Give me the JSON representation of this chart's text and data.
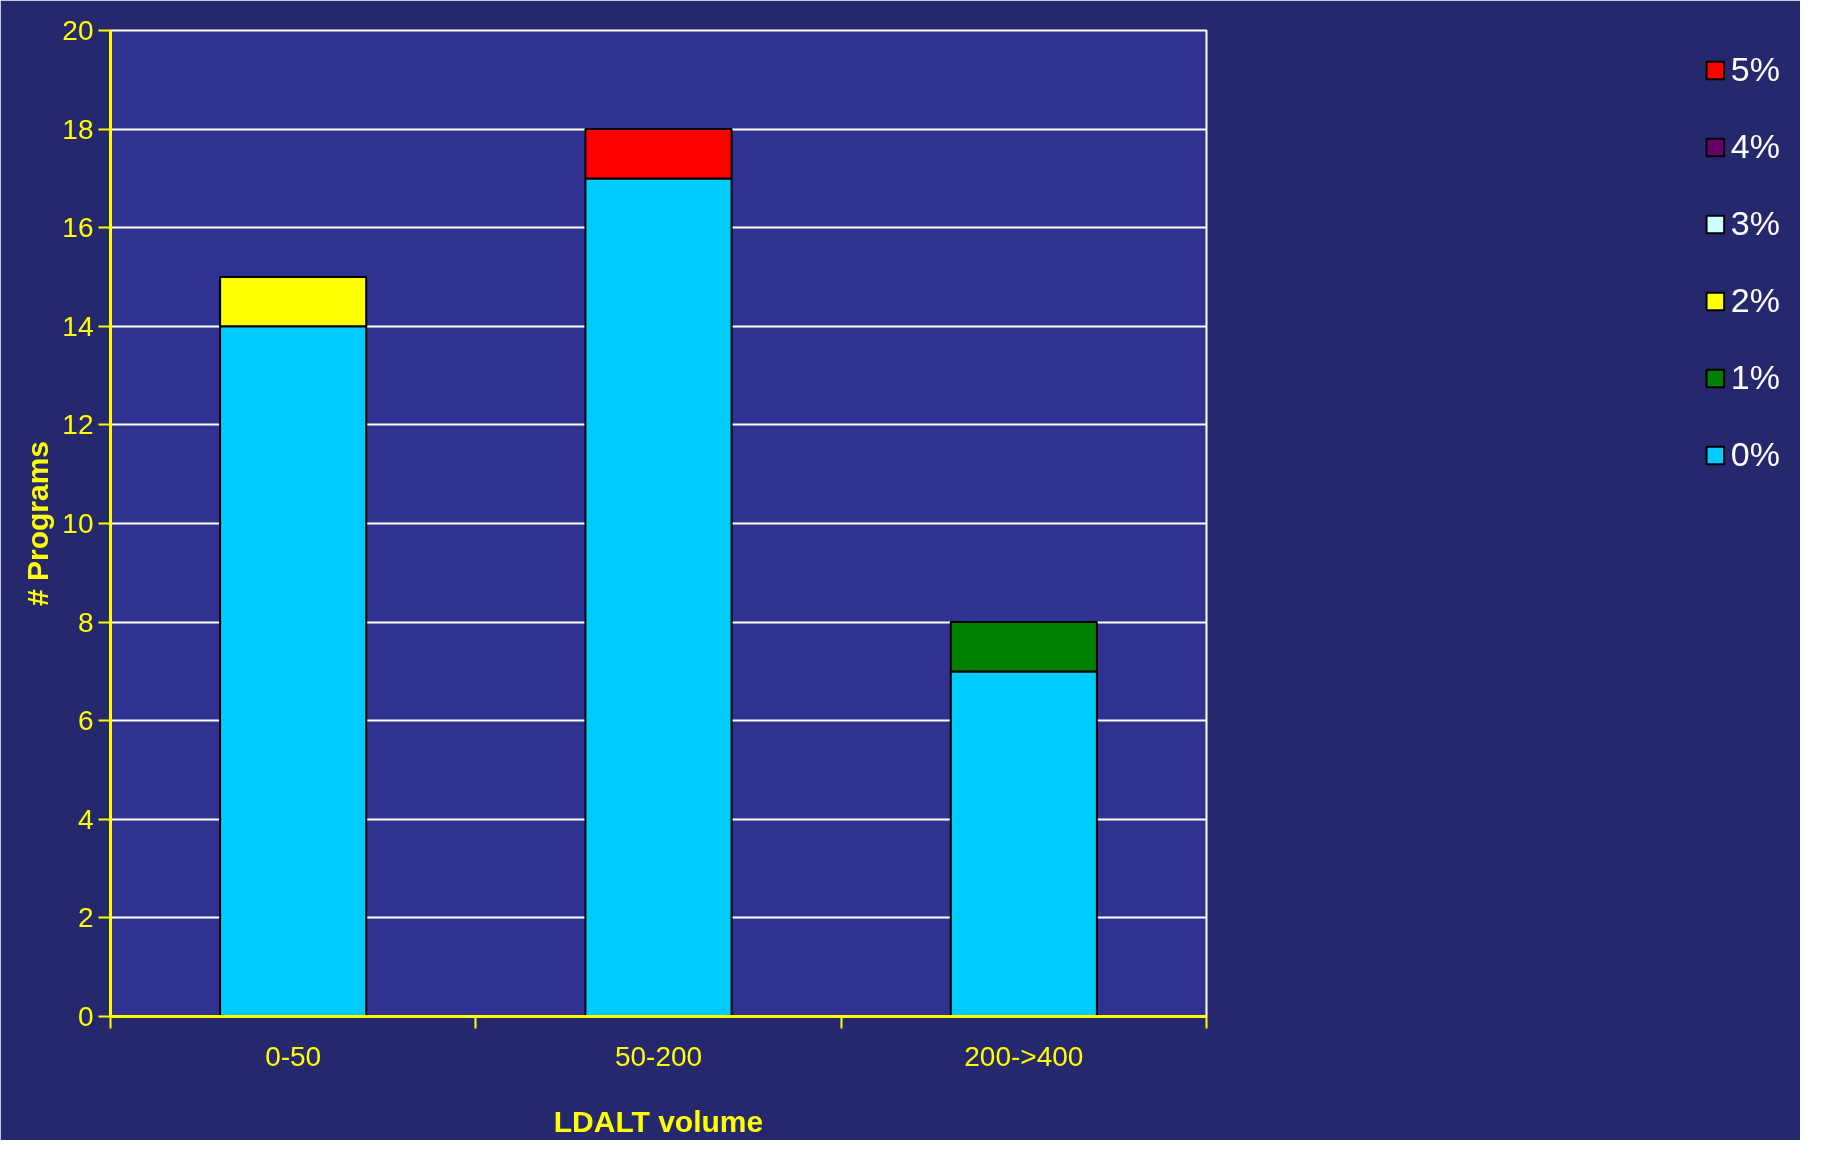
{
  "chart_data": {
    "type": "bar",
    "stacked": true,
    "xlabel": "LDALT volume",
    "ylabel": "# Programs",
    "categories": [
      "0-50",
      "50-200",
      "200->400"
    ],
    "series": [
      {
        "name": "0%",
        "color": "#00ccff",
        "values": [
          14,
          17,
          7
        ]
      },
      {
        "name": "1%",
        "color": "#008000",
        "values": [
          0,
          0,
          1
        ]
      },
      {
        "name": "2%",
        "color": "#ffff00",
        "values": [
          1,
          0,
          0
        ]
      },
      {
        "name": "3%",
        "color": "#ccffff",
        "values": [
          0,
          0,
          0
        ]
      },
      {
        "name": "4%",
        "color": "#660066",
        "values": [
          0,
          0,
          0
        ]
      },
      {
        "name": "5%",
        "color": "#ff0000",
        "values": [
          0,
          1,
          0
        ]
      }
    ],
    "ylim": [
      0,
      20
    ],
    "yticks": [
      0,
      2,
      4,
      6,
      8,
      10,
      12,
      14,
      16,
      18,
      20
    ],
    "grid": "y",
    "legend": "right"
  }
}
